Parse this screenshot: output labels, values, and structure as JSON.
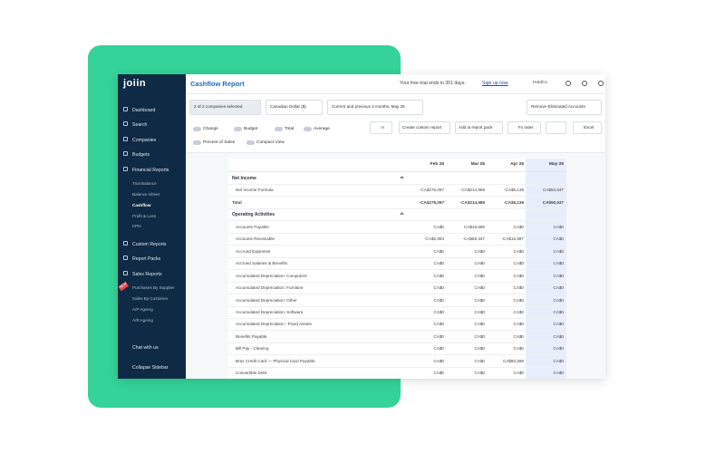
{
  "sidebar": {
    "logo": "joiin",
    "badge": "NEW",
    "menu": [
      {
        "label": "Dashboard"
      },
      {
        "label": "Search"
      },
      {
        "label": "Companies"
      },
      {
        "label": "Budgets"
      },
      {
        "label": "Financial Reports",
        "submenu": [
          "Trial Balance",
          "Balance Sheet",
          "Cashflow",
          "Profit & Loss",
          "KPIs"
        ]
      },
      {
        "label": "Custom Reports"
      },
      {
        "label": "Report Packs"
      },
      {
        "label": "Sales Reports",
        "submenu": [
          "Purchases By Supplier",
          "Sales By Customer",
          "A/P Ageing",
          "A/R Ageing"
        ]
      }
    ],
    "chat": "Chat with us",
    "collapse": "Collapse Sidebar"
  },
  "header": {
    "title": "Cashflow Report",
    "trial": "Your free trial ends in 351 days.",
    "signup": "Sign up now",
    "company": "HoldCo"
  },
  "toolbar": {
    "dropdowns": [
      "2 of 2 companies selected",
      "Canadian Dollar ($)",
      "Current and previous 3 months, May 25",
      "Remove Eliminated Accounts"
    ],
    "toggles": [
      "Change",
      "Budget",
      "Total",
      "Average",
      "Percent of Sales",
      "Compact View"
    ],
    "buttons": [
      "AI",
      "Create custom report",
      "Add to report pack",
      "Fx rates",
      "Excel"
    ]
  },
  "table": {
    "columns": [
      "Feb 25",
      "Mar 25",
      "Apr 25",
      "May 25"
    ],
    "rows": [
      {
        "section": "Net Income"
      },
      {
        "label": "Net Income Formula",
        "cells": [
          "-CA$275,097",
          "-CA$214,985",
          "-CA$5,136",
          "CA$50,537"
        ]
      },
      {
        "label": "Total",
        "cells": [
          "-CA$275,097",
          "-CA$214,985",
          "-CA$5,136",
          "CA$50,537"
        ]
      },
      {
        "section": "Operating Activities"
      },
      {
        "label": "Accounts Payable",
        "cells": [
          "CA$0",
          "CA$16,696",
          "CA$0",
          "CA$0"
        ]
      },
      {
        "label": "Accounts Receivable",
        "cells": [
          "-CA$2,893",
          "-CA$69,347",
          "-CA$15,897",
          "CA$0"
        ]
      },
      {
        "label": "Accrued Expenses",
        "cells": [
          "CA$0",
          "CA$0",
          "CA$0",
          "CA$0"
        ]
      },
      {
        "label": "Accrued Salaries & Benefits",
        "cells": [
          "CA$0",
          "CA$0",
          "CA$0",
          "CA$0"
        ]
      },
      {
        "label": "Accumulated Depreciation: Computers",
        "cells": [
          "CA$0",
          "CA$0",
          "CA$0",
          "CA$0"
        ]
      },
      {
        "label": "Accumulated Depreciation: Furniture",
        "cells": [
          "CA$0",
          "CA$0",
          "CA$0",
          "CA$0"
        ]
      },
      {
        "label": "Accumulated Depreciation: Other",
        "cells": [
          "CA$0",
          "CA$0",
          "CA$0",
          "CA$0"
        ]
      },
      {
        "label": "Accumulated Depreciation: Software",
        "cells": [
          "CA$0",
          "CA$0",
          "CA$0",
          "CA$0"
        ]
      },
      {
        "label": "Accumulated Depreciation - Fixed Assets",
        "cells": [
          "CA$0",
          "CA$0",
          "CA$0",
          "CA$0"
        ]
      },
      {
        "label": "Benefits Payable",
        "cells": [
          "CA$0",
          "CA$0",
          "CA$0",
          "CA$0"
        ]
      },
      {
        "label": "Bill Pay - Clearing",
        "cells": [
          "CA$0",
          "CA$0",
          "CA$0",
          "CA$0"
        ]
      },
      {
        "label": "Brex Credit Card — Physical Card Payable",
        "cells": [
          "CA$0",
          "CA$0",
          "CA$80,599",
          "CA$0"
        ]
      },
      {
        "label": "Convertible Debt",
        "cells": [
          "CA$0",
          "CA$0",
          "CA$0",
          "CA$0"
        ]
      }
    ]
  }
}
